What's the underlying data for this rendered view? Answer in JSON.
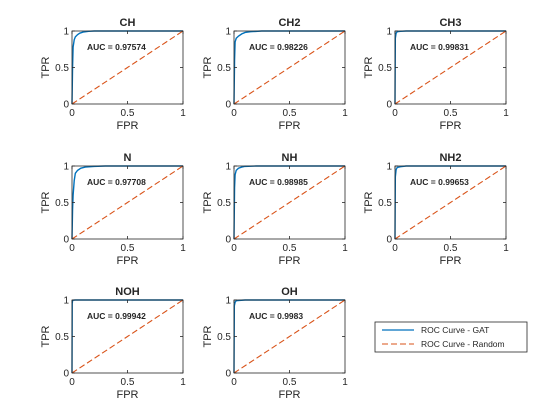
{
  "colors": {
    "gat": "#0072BD",
    "random": "#D95319",
    "axis": "#262626"
  },
  "legend": {
    "gat_label": "ROC Curve - GAT",
    "random_label": "ROC Curve - Random",
    "placement": "bottom-right"
  },
  "chart_data": [
    {
      "type": "line",
      "title": "CH",
      "xlabel": "FPR",
      "ylabel": "TPR",
      "xlim": [
        0,
        1
      ],
      "ylim": [
        0,
        1
      ],
      "xticks": [
        "0",
        "0.5",
        "1"
      ],
      "yticks": [
        "0",
        "0.5",
        "1"
      ],
      "auc_text": "AUC = 0.97574",
      "series": [
        {
          "name": "ROC Curve - GAT",
          "x": [
            0,
            0.005,
            0.01,
            0.02,
            0.03,
            0.05,
            0.07,
            0.1,
            0.15,
            0.2,
            0.3,
            1
          ],
          "y": [
            0,
            0.5,
            0.78,
            0.88,
            0.92,
            0.95,
            0.97,
            0.985,
            0.995,
            1,
            1,
            1
          ]
        },
        {
          "name": "ROC Curve - Random",
          "x": [
            0,
            1
          ],
          "y": [
            0,
            1
          ]
        }
      ]
    },
    {
      "type": "line",
      "title": "CH2",
      "xlabel": "FPR",
      "ylabel": "TPR",
      "xlim": [
        0,
        1
      ],
      "ylim": [
        0,
        1
      ],
      "xticks": [
        "0",
        "0.5",
        "1"
      ],
      "yticks": [
        "0",
        "0.5",
        "1"
      ],
      "auc_text": "AUC = 0.98226",
      "series": [
        {
          "name": "ROC Curve - GAT",
          "x": [
            0,
            0.005,
            0.01,
            0.02,
            0.04,
            0.07,
            0.1,
            0.15,
            0.25,
            1
          ],
          "y": [
            0,
            0.6,
            0.85,
            0.9,
            0.93,
            0.96,
            0.98,
            0.99,
            1,
            1
          ]
        },
        {
          "name": "ROC Curve - Random",
          "x": [
            0,
            1
          ],
          "y": [
            0,
            1
          ]
        }
      ]
    },
    {
      "type": "line",
      "title": "CH3",
      "xlabel": "FPR",
      "ylabel": "TPR",
      "xlim": [
        0,
        1
      ],
      "ylim": [
        0,
        1
      ],
      "xticks": [
        "0",
        "0.5",
        "1"
      ],
      "yticks": [
        "0",
        "0.5",
        "1"
      ],
      "auc_text": "AUC = 0.99831",
      "series": [
        {
          "name": "ROC Curve - GAT",
          "x": [
            0,
            0.003,
            0.01,
            0.02,
            0.05,
            0.1,
            1
          ],
          "y": [
            0,
            0.9,
            0.97,
            0.99,
            0.995,
            1,
            1
          ]
        },
        {
          "name": "ROC Curve - Random",
          "x": [
            0,
            1
          ],
          "y": [
            0,
            1
          ]
        }
      ]
    },
    {
      "type": "line",
      "title": "N",
      "xlabel": "FPR",
      "ylabel": "TPR",
      "xlim": [
        0,
        1
      ],
      "ylim": [
        0,
        1
      ],
      "xticks": [
        "0",
        "0.5",
        "1"
      ],
      "yticks": [
        "0",
        "0.5",
        "1"
      ],
      "auc_text": "AUC = 0.97708",
      "series": [
        {
          "name": "ROC Curve - GAT",
          "x": [
            0,
            0.005,
            0.01,
            0.02,
            0.03,
            0.05,
            0.08,
            0.12,
            0.2,
            0.3,
            1
          ],
          "y": [
            0,
            0.4,
            0.6,
            0.8,
            0.9,
            0.94,
            0.97,
            0.985,
            0.995,
            1,
            1
          ]
        },
        {
          "name": "ROC Curve - Random",
          "x": [
            0,
            1
          ],
          "y": [
            0,
            1
          ]
        }
      ]
    },
    {
      "type": "line",
      "title": "NH",
      "xlabel": "FPR",
      "ylabel": "TPR",
      "xlim": [
        0,
        1
      ],
      "ylim": [
        0,
        1
      ],
      "xticks": [
        "0",
        "0.5",
        "1"
      ],
      "yticks": [
        "0",
        "0.5",
        "1"
      ],
      "auc_text": "AUC = 0.98985",
      "series": [
        {
          "name": "ROC Curve - GAT",
          "x": [
            0,
            0.005,
            0.01,
            0.02,
            0.04,
            0.07,
            0.1,
            0.2,
            1
          ],
          "y": [
            0,
            0.7,
            0.88,
            0.94,
            0.97,
            0.985,
            0.995,
            1,
            1
          ]
        },
        {
          "name": "ROC Curve - Random",
          "x": [
            0,
            1
          ],
          "y": [
            0,
            1
          ]
        }
      ]
    },
    {
      "type": "line",
      "title": "NH2",
      "xlabel": "FPR",
      "ylabel": "TPR",
      "xlim": [
        0,
        1
      ],
      "ylim": [
        0,
        1
      ],
      "xticks": [
        "0",
        "0.5",
        "1"
      ],
      "yticks": [
        "0",
        "0.5",
        "1"
      ],
      "auc_text": "AUC = 0.99653",
      "series": [
        {
          "name": "ROC Curve - GAT",
          "x": [
            0,
            0.003,
            0.01,
            0.02,
            0.05,
            0.1,
            1
          ],
          "y": [
            0,
            0.85,
            0.95,
            0.98,
            0.99,
            1,
            1
          ]
        },
        {
          "name": "ROC Curve - Random",
          "x": [
            0,
            1
          ],
          "y": [
            0,
            1
          ]
        }
      ]
    },
    {
      "type": "line",
      "title": "NOH",
      "xlabel": "FPR",
      "ylabel": "TPR",
      "xlim": [
        0,
        1
      ],
      "ylim": [
        0,
        1
      ],
      "xticks": [
        "0",
        "0.5",
        "1"
      ],
      "yticks": [
        "0",
        "0.5",
        "1"
      ],
      "auc_text": "AUC = 0.99942",
      "series": [
        {
          "name": "ROC Curve - GAT",
          "x": [
            0,
            0.002,
            0.005,
            0.01,
            0.03,
            1
          ],
          "y": [
            0,
            0.95,
            0.99,
            0.998,
            1,
            1
          ]
        },
        {
          "name": "ROC Curve - Random",
          "x": [
            0,
            1
          ],
          "y": [
            0,
            1
          ]
        }
      ]
    },
    {
      "type": "line",
      "title": "OH",
      "xlabel": "FPR",
      "ylabel": "TPR",
      "xlim": [
        0,
        1
      ],
      "ylim": [
        0,
        1
      ],
      "xticks": [
        "0",
        "0.5",
        "1"
      ],
      "yticks": [
        "0",
        "0.5",
        "1"
      ],
      "auc_text": "AUC = 0.9983",
      "series": [
        {
          "name": "ROC Curve - GAT",
          "x": [
            0,
            0.003,
            0.01,
            0.02,
            0.05,
            0.1,
            1
          ],
          "y": [
            0,
            0.92,
            0.97,
            0.99,
            0.995,
            1,
            1
          ]
        },
        {
          "name": "ROC Curve - Random",
          "x": [
            0,
            1
          ],
          "y": [
            0,
            1
          ]
        }
      ]
    }
  ]
}
